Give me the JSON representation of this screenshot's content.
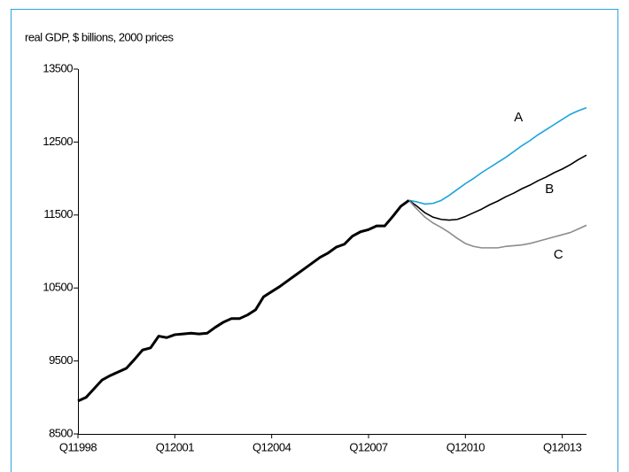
{
  "chart_data": {
    "type": "line",
    "y_label": "real GDP, $ billions, 2000 prices",
    "categories": [
      "Q11998",
      null,
      null,
      null,
      null,
      null,
      null,
      null,
      null,
      null,
      null,
      null,
      "Q12001",
      null,
      null,
      null,
      null,
      null,
      null,
      null,
      null,
      null,
      null,
      null,
      "Q12004",
      null,
      null,
      null,
      null,
      null,
      null,
      null,
      null,
      null,
      null,
      null,
      "Q12007",
      null,
      null,
      null,
      null,
      null,
      null,
      null,
      null,
      null,
      null,
      null,
      "Q12010",
      null,
      null,
      null,
      null,
      null,
      null,
      null,
      null,
      null,
      null,
      null,
      "Q12013",
      null,
      null,
      null
    ],
    "series": [
      {
        "color": "#000000",
        "line_width": 3,
        "values": [
          8950,
          9000,
          9120,
          9240,
          9300,
          9350,
          9400,
          9520,
          9650,
          9680,
          9840,
          9820,
          9860,
          9870,
          9880,
          9870,
          9880,
          9960,
          10030,
          10080,
          10080,
          10130,
          10200,
          10380,
          10450,
          10520,
          10600,
          10680,
          10760,
          10840,
          10920,
          10980,
          11060,
          11100,
          11210,
          11270,
          11300,
          11350,
          11350,
          11480,
          11620,
          11700,
          null,
          null,
          null,
          null,
          null,
          null,
          null,
          null,
          null,
          null,
          null,
          null,
          null,
          null,
          null,
          null,
          null,
          null,
          null,
          null,
          null,
          null
        ]
      },
      {
        "name": "A",
        "color": "#1aa3dc",
        "line_width": 1.6,
        "values": [
          null,
          null,
          null,
          null,
          null,
          null,
          null,
          null,
          null,
          null,
          null,
          null,
          null,
          null,
          null,
          null,
          null,
          null,
          null,
          null,
          null,
          null,
          null,
          null,
          null,
          null,
          null,
          null,
          null,
          null,
          null,
          null,
          null,
          null,
          null,
          null,
          null,
          null,
          null,
          null,
          null,
          11700,
          11680,
          11650,
          11660,
          11700,
          11770,
          11850,
          11930,
          12000,
          12080,
          12150,
          12220,
          12290,
          12370,
          12450,
          12520,
          12600,
          12670,
          12740,
          12810,
          12880,
          12930,
          12970
        ]
      },
      {
        "name": "B",
        "color": "#000000",
        "line_width": 1.6,
        "values": [
          null,
          null,
          null,
          null,
          null,
          null,
          null,
          null,
          null,
          null,
          null,
          null,
          null,
          null,
          null,
          null,
          null,
          null,
          null,
          null,
          null,
          null,
          null,
          null,
          null,
          null,
          null,
          null,
          null,
          null,
          null,
          null,
          null,
          null,
          null,
          null,
          null,
          null,
          null,
          null,
          null,
          11700,
          11620,
          11530,
          11470,
          11440,
          11430,
          11440,
          11480,
          11530,
          11580,
          11640,
          11690,
          11750,
          11800,
          11860,
          11910,
          11970,
          12020,
          12080,
          12130,
          12190,
          12260,
          12320
        ]
      },
      {
        "name": "C",
        "color": "#8c8c8c",
        "line_width": 1.6,
        "values": [
          null,
          null,
          null,
          null,
          null,
          null,
          null,
          null,
          null,
          null,
          null,
          null,
          null,
          null,
          null,
          null,
          null,
          null,
          null,
          null,
          null,
          null,
          null,
          null,
          null,
          null,
          null,
          null,
          null,
          null,
          null,
          null,
          null,
          null,
          null,
          null,
          null,
          null,
          null,
          null,
          null,
          11700,
          11580,
          11470,
          11390,
          11330,
          11260,
          11180,
          11110,
          11070,
          11050,
          11050,
          11050,
          11070,
          11080,
          11090,
          11110,
          11140,
          11170,
          11200,
          11230,
          11260,
          11310,
          11360
        ]
      }
    ],
    "ylim": [
      8500,
      13500
    ],
    "yticks": [
      8500,
      9500,
      10500,
      11500,
      12500,
      13500
    ],
    "grid": false
  }
}
